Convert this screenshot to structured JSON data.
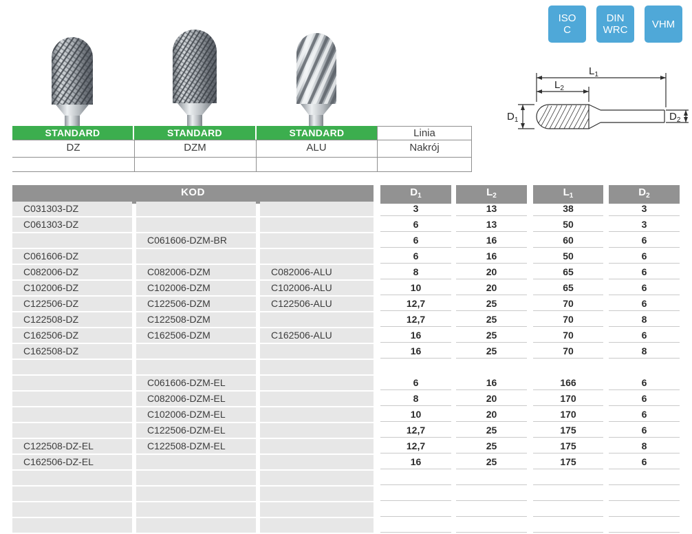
{
  "colors": {
    "accent_blue": "#4fa8d8",
    "brand_green": "#3cae4e",
    "header_gray": "#929292",
    "cell_gray": "#e7e7e7"
  },
  "badges": [
    {
      "id": "iso-c",
      "lines": [
        "ISO",
        "C"
      ]
    },
    {
      "id": "din-wrc",
      "lines": [
        "DIN",
        "WRC"
      ]
    },
    {
      "id": "vhm",
      "lines": [
        "VHM"
      ]
    }
  ],
  "mini_table": {
    "columns": [
      {
        "tier": "STANDARD",
        "code": "DZ"
      },
      {
        "tier": "STANDARD",
        "code": "DZM"
      },
      {
        "tier": "STANDARD",
        "code": "ALU"
      }
    ],
    "line_label": "Linia",
    "cut_label": "Nakrój"
  },
  "diagram": {
    "l1": {
      "base": "L",
      "sub": "1"
    },
    "l2": {
      "base": "L",
      "sub": "2"
    },
    "d1": {
      "base": "D",
      "sub": "1"
    },
    "d2": {
      "base": "D",
      "sub": "2"
    }
  },
  "table": {
    "kod_label": "KOD",
    "dim_headers": [
      {
        "base": "D",
        "sub": "1"
      },
      {
        "base": "L",
        "sub": "2"
      },
      {
        "base": "L",
        "sub": "1"
      },
      {
        "base": "D",
        "sub": "2"
      }
    ],
    "rows": [
      {
        "codes": [
          "C031303-DZ",
          "",
          ""
        ],
        "dims": [
          "3",
          "13",
          "38",
          "3"
        ]
      },
      {
        "codes": [
          "C061303-DZ",
          "",
          ""
        ],
        "dims": [
          "6",
          "13",
          "50",
          "3"
        ]
      },
      {
        "codes": [
          "",
          "C061606-DZM-BR",
          ""
        ],
        "dims": [
          "6",
          "16",
          "60",
          "6"
        ]
      },
      {
        "codes": [
          "C061606-DZ",
          "",
          ""
        ],
        "dims": [
          "6",
          "16",
          "50",
          "6"
        ]
      },
      {
        "codes": [
          "C082006-DZ",
          "C082006-DZM",
          "C082006-ALU"
        ],
        "dims": [
          "8",
          "20",
          "65",
          "6"
        ]
      },
      {
        "codes": [
          "C102006-DZ",
          "C102006-DZM",
          "C102006-ALU"
        ],
        "dims": [
          "10",
          "20",
          "65",
          "6"
        ]
      },
      {
        "codes": [
          "C122506-DZ",
          "C122506-DZM",
          "C122506-ALU"
        ],
        "dims": [
          "12,7",
          "25",
          "70",
          "6"
        ]
      },
      {
        "codes": [
          "C122508-DZ",
          "C122508-DZM",
          ""
        ],
        "dims": [
          "12,7",
          "25",
          "70",
          "8"
        ]
      },
      {
        "codes": [
          "C162506-DZ",
          "C162506-DZM",
          "C162506-ALU"
        ],
        "dims": [
          "16",
          "25",
          "70",
          "6"
        ]
      },
      {
        "codes": [
          "C162508-DZ",
          "",
          ""
        ],
        "dims": [
          "16",
          "25",
          "70",
          "8"
        ]
      },
      {
        "codes": [
          "",
          "",
          ""
        ],
        "dims": [
          "",
          "",
          "",
          ""
        ],
        "spacer": true
      },
      {
        "codes": [
          "",
          "C061606-DZM-EL",
          ""
        ],
        "dims": [
          "6",
          "16",
          "166",
          "6"
        ]
      },
      {
        "codes": [
          "",
          "C082006-DZM-EL",
          ""
        ],
        "dims": [
          "8",
          "20",
          "170",
          "6"
        ]
      },
      {
        "codes": [
          "",
          "C102006-DZM-EL",
          ""
        ],
        "dims": [
          "10",
          "20",
          "170",
          "6"
        ]
      },
      {
        "codes": [
          "",
          "C122506-DZM-EL",
          ""
        ],
        "dims": [
          "12,7",
          "25",
          "175",
          "6"
        ]
      },
      {
        "codes": [
          "C122508-DZ-EL",
          "C122508-DZM-EL",
          ""
        ],
        "dims": [
          "12,7",
          "25",
          "175",
          "8"
        ]
      },
      {
        "codes": [
          "C162506-DZ-EL",
          "",
          ""
        ],
        "dims": [
          "16",
          "25",
          "175",
          "6"
        ]
      },
      {
        "codes": [
          "",
          "",
          ""
        ],
        "dims": [
          "",
          "",
          "",
          ""
        ]
      },
      {
        "codes": [
          "",
          "",
          ""
        ],
        "dims": [
          "",
          "",
          "",
          ""
        ]
      },
      {
        "codes": [
          "",
          "",
          ""
        ],
        "dims": [
          "",
          "",
          "",
          ""
        ]
      },
      {
        "codes": [
          "",
          "",
          ""
        ],
        "dims": [
          "",
          "",
          "",
          ""
        ]
      }
    ]
  }
}
